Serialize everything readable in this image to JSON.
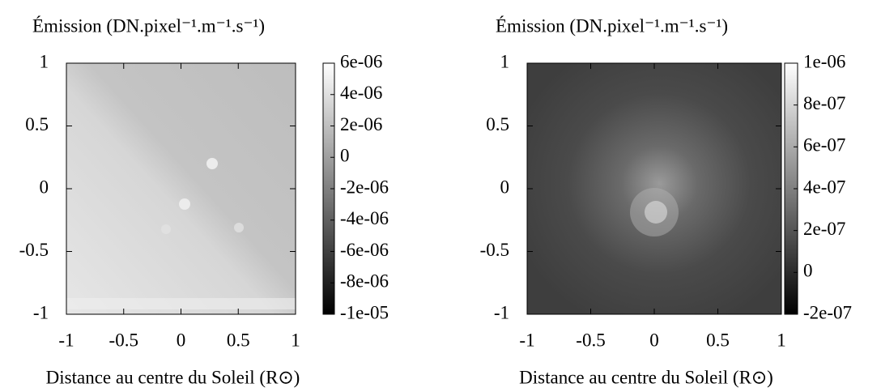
{
  "chart_data": [
    {
      "type": "heatmap",
      "title": "Émission (DN.pixel⁻¹.m⁻¹.s⁻¹)",
      "x_label": "Distance au centre du Soleil (R⊙)",
      "xlim": [
        -1,
        1
      ],
      "xticks": [
        -1,
        -0.5,
        0,
        0.5,
        1
      ],
      "ylim": [
        -1,
        1
      ],
      "yticks": [
        -1,
        -0.5,
        0,
        0.5,
        1
      ],
      "colormap": [
        "#000000",
        "#ffffff"
      ],
      "clim": [
        -1e-05,
        6e-06
      ],
      "cticks": [
        {
          "value": -1e-05,
          "label": "-1e-05"
        },
        {
          "value": -8e-06,
          "label": "-8e-06"
        },
        {
          "value": -6e-06,
          "label": "-6e-06"
        },
        {
          "value": -4e-06,
          "label": "-4e-06"
        },
        {
          "value": -2e-06,
          "label": "-2e-06"
        },
        0,
        {
          "value": 2e-06,
          "label": "2e-06"
        },
        {
          "value": 4e-06,
          "label": "4e-06"
        },
        {
          "value": 6e-06,
          "label": "6e-06"
        }
      ]
    },
    {
      "type": "heatmap",
      "title": "Émission (DN.pixel⁻¹.m⁻¹.s⁻¹)",
      "x_label": "Distance au centre du Soleil (R⊙)",
      "xlim": [
        -1,
        1
      ],
      "xticks": [
        -1,
        -0.5,
        0,
        0.5,
        1
      ],
      "ylim": [
        -1,
        1
      ],
      "yticks": [
        -1,
        -0.5,
        0,
        0.5,
        1
      ],
      "colormap": [
        "#000000",
        "#ffffff"
      ],
      "clim": [
        -2e-07,
        1e-06
      ],
      "cticks": [
        {
          "value": -2e-07,
          "label": "-2e-07"
        },
        0,
        {
          "value": 2e-07,
          "label": "2e-07"
        },
        {
          "value": 4e-07,
          "label": "4e-07"
        },
        {
          "value": 6e-07,
          "label": "6e-07"
        },
        {
          "value": 8e-07,
          "label": "8e-07"
        },
        {
          "value": 1e-06,
          "label": "1e-06"
        }
      ]
    }
  ]
}
